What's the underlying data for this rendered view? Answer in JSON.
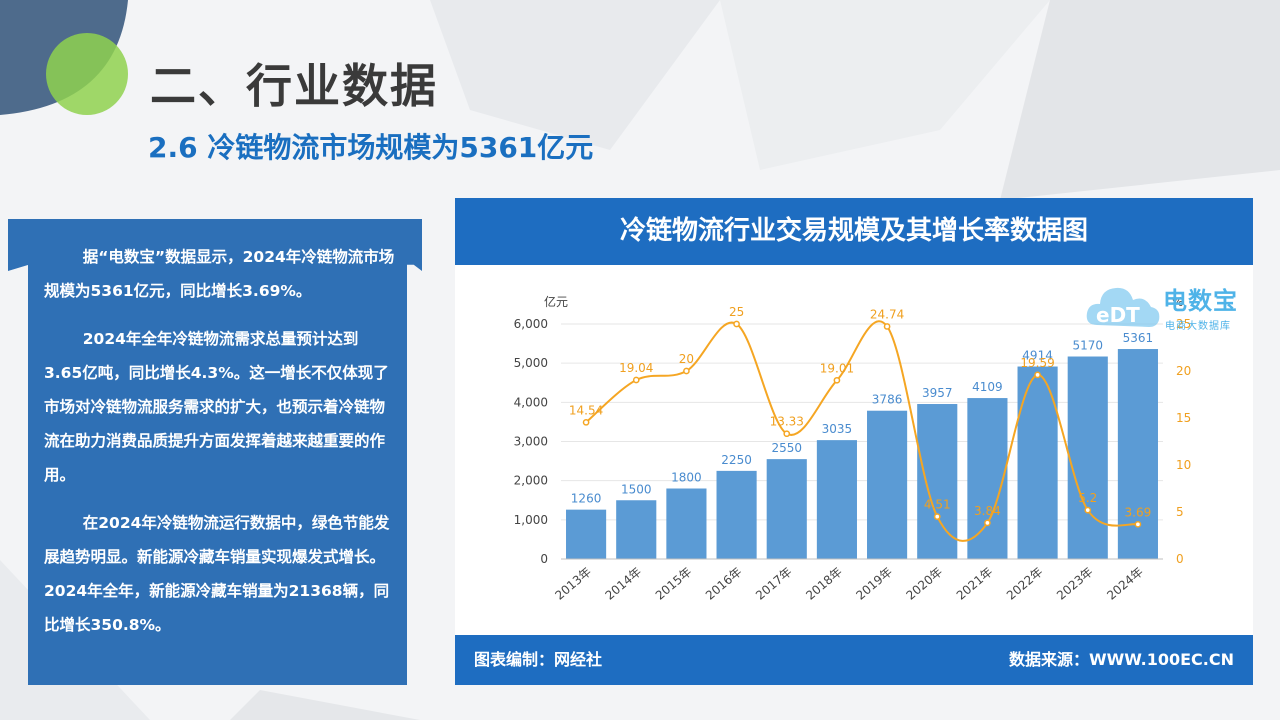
{
  "slide": {
    "title": "二、行业数据",
    "subtitle": "2.6 冷链物流市场规模为5361亿元"
  },
  "text_panel": {
    "paragraphs": [
      "据“电数宝”数据显示，2024年冷链物流市场规模为5361亿元，同比增长3.69%。",
      "2024年全年冷链物流需求总量预计达到3.65亿吨，同比增长4.3%。这一增长不仅体现了市场对冷链物流服务需求的扩大，也预示着冷链物流在助力消费品质提升方面发挥着越来越重要的作用。",
      "在2024年冷链物流运行数据中，绿色节能发展趋势明显。新能源冷藏车销量实现爆发式增长。2024年全年，新能源冷藏车销量为21368辆，同比增长350.8%。"
    ]
  },
  "chart_panel": {
    "footer_left": "图表编制：网经社",
    "footer_right": "数据来源：WWW.100EC.CN",
    "logo_text": "电数宝",
    "logo_mark_text": "eDT",
    "logo_subtext": "电商大数据库"
  },
  "chart_data": {
    "type": "bar",
    "title": "冷链物流行业交易规模及其增长率数据图",
    "categories": [
      "2013年",
      "2014年",
      "2015年",
      "2016年",
      "2017年",
      "2018年",
      "2019年",
      "2020年",
      "2021年",
      "2022年",
      "2023年",
      "2024年"
    ],
    "series": [
      {
        "type": "bar",
        "axis": "left",
        "values": [
          1260,
          1500,
          1800,
          2250,
          2550,
          3035,
          3786,
          3957,
          4109,
          4914,
          5170,
          5361
        ],
        "color": "#5b9bd5"
      },
      {
        "type": "line",
        "axis": "right",
        "values": [
          14.54,
          19.04,
          20,
          25,
          13.33,
          19.01,
          24.74,
          4.51,
          3.84,
          19.59,
          5.2,
          3.69
        ],
        "color": "#f5a623",
        "smooth": true
      }
    ],
    "y_left": {
      "unit_label": "亿元",
      "min": 0,
      "max": 6000,
      "ticks": [
        0,
        1000,
        2000,
        3000,
        4000,
        5000,
        6000
      ],
      "tick_labels": [
        "0",
        "1,000",
        "2,000",
        "3,000",
        "4,000",
        "5,000",
        "6,000"
      ]
    },
    "y_right": {
      "unit_label": "%",
      "min": 0,
      "max": 25,
      "ticks": [
        0,
        5,
        10,
        15,
        20,
        25
      ],
      "tick_labels": [
        "0",
        "5",
        "10",
        "15",
        "20",
        "25"
      ]
    },
    "grid": true,
    "legend": "none"
  }
}
